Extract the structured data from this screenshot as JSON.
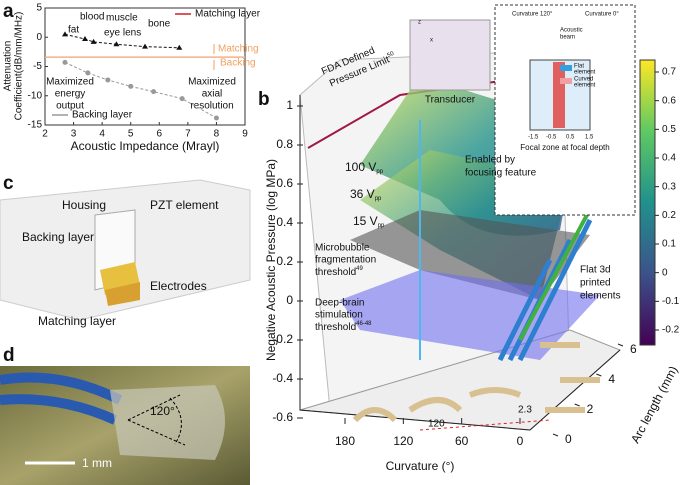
{
  "panel_letters": [
    "a",
    "b",
    "c",
    "d"
  ],
  "panel_a": {
    "type": "scatter",
    "xlabel": "Acoustic Impedance (Mrayl)",
    "ylabel": [
      "Attenuation",
      "Coefficient(dB/mm/MHz)"
    ],
    "xlim": [
      2,
      9
    ],
    "xticks": [
      2,
      3,
      4,
      5,
      6,
      7,
      8,
      9
    ],
    "ylim": [
      -15,
      5
    ],
    "yticks": [
      -15,
      -10,
      -5,
      0,
      5
    ],
    "series": [
      {
        "name": "Matching layer",
        "color": "#111111",
        "x": [
          2.7,
          3.4,
          3.7,
          4.5,
          5.5,
          6.7
        ],
        "values": [
          0.5,
          -0.3,
          -0.8,
          -1.2,
          -1.6,
          -1.8
        ]
      },
      {
        "name": "Backing layer",
        "color": "#999999",
        "x": [
          2.7,
          3.5,
          4.2,
          5.0,
          5.8,
          6.8,
          8.0
        ],
        "values": [
          -4.3,
          -6.1,
          -7.3,
          -8.4,
          -9.3,
          -10.5,
          -13.8
        ]
      }
    ],
    "boundary": {
      "value": -3.4,
      "labels": [
        "Matching",
        "Backing"
      ]
    },
    "annotations": [
      "fat",
      "blood",
      "muscle",
      "eye lens",
      "bone"
    ],
    "notes": [
      [
        "Maximized",
        "energy",
        "output"
      ],
      [
        "Maximized",
        "axial",
        "resolution"
      ]
    ]
  },
  "panel_b": {
    "zlabel": "Negative Acoustic Pressure (log MPa)",
    "zticks": [
      -0.6,
      -0.4,
      -0.2,
      0,
      0.2,
      0.4,
      0.6,
      0.8,
      1
    ],
    "xlabel": "Curvature (°)",
    "xticks": [
      180,
      120,
      60,
      0
    ],
    "ylabel": "Arc length (mm)",
    "yticks": [
      0,
      2,
      4,
      6
    ],
    "colorbar_ticks": [
      -0.2,
      -0.1,
      0,
      0.1,
      0.2,
      0.3,
      0.4,
      0.5,
      0.6,
      0.7
    ],
    "fda": {
      "text": [
        "FDA Defined",
        "Pressure Limit"
      ],
      "sup": "50"
    },
    "voltages": [
      {
        "text": "100 V",
        "sub": "pp"
      },
      {
        "text": "36 V",
        "sub": "pp"
      },
      {
        "text": "15 V",
        "sub": "pp"
      }
    ],
    "microbubble": {
      "text": [
        "Microbubble",
        "fragmentation",
        "threshold"
      ],
      "sup": "49"
    },
    "deep_brain": {
      "text": [
        "Deep-brain",
        "stimulation",
        "threshold"
      ],
      "sup": "46-48"
    },
    "focusing": [
      "Enabled by",
      "focusing feature"
    ],
    "flat": [
      "Flat 3d",
      "printed",
      "elements"
    ],
    "floor_labels": [
      "120",
      "2.3"
    ],
    "transducer": "Transducer",
    "inset": {
      "titles": [
        "Curvature 120°",
        "Curvature 0°"
      ],
      "beam": [
        "Acoustic",
        "beam"
      ],
      "legend": [
        [
          "Flat",
          "element"
        ],
        [
          "Curved",
          "element"
        ]
      ],
      "ticks": [
        "-1.5",
        "-0.5",
        "0.5",
        "1.5"
      ],
      "caption": "Focal zone at focal depth",
      "axes": [
        "z",
        "x"
      ]
    }
  },
  "panel_c": {
    "labels": [
      "Housing",
      "PZT element",
      "Backing layer",
      "Electrodes",
      "Matching layer"
    ]
  },
  "panel_d": {
    "angle": "120°",
    "scale": "1 mm"
  }
}
